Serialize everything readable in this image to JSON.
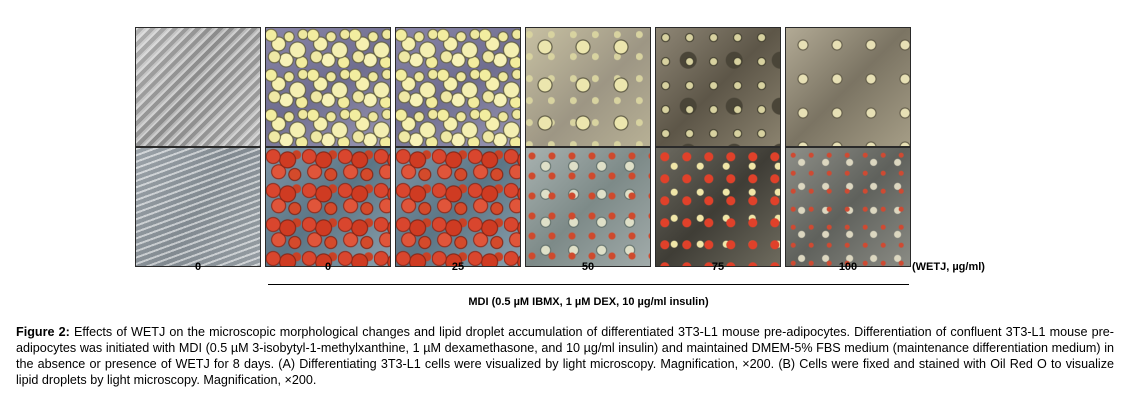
{
  "figure": {
    "labels": [
      "0",
      "0",
      "25",
      "50",
      "75",
      "100"
    ],
    "unit_label": "(WETJ, µg/ml)",
    "mdi_label": "MDI (0.5 µM IBMX, 1 µM DEX, 10 µg/ml insulin)",
    "row_a_images": [
      "micrograph-control",
      "micrograph-mdi",
      "micrograph-mdi-wetj-25",
      "micrograph-mdi-wetj-50",
      "micrograph-mdi-wetj-75",
      "micrograph-mdi-wetj-100"
    ],
    "row_b_images": [
      "oil-red-o-control",
      "oil-red-o-mdi",
      "oil-red-o-mdi-wetj-25",
      "oil-red-o-mdi-wetj-50",
      "oil-red-o-mdi-wetj-75",
      "oil-red-o-mdi-wetj-100"
    ]
  },
  "caption": {
    "prefix": "Figure 2:",
    "text": " Effects of WETJ on the microscopic morphological changes and lipid droplet accumulation of differentiated 3T3-L1 mouse pre-adipocytes. Differentiation of confluent 3T3-L1 mouse pre-adipocytes was initiated with MDI (0.5 µM 3-isobytyl-1-methylxanthine, 1 µM dexamethasone, and 10 µg/ml insulin) and maintained DMEM-5% FBS medium (maintenance differentiation medium) in the absence or presence of WETJ for 8 days. (A) Differentiating 3T3-L1 cells were visualized by light microscopy. Magnification, ×200. (B) Cells were fixed and stained with Oil Red O to visualize lipid droplets by light microscopy. Magnification, ×200."
  }
}
